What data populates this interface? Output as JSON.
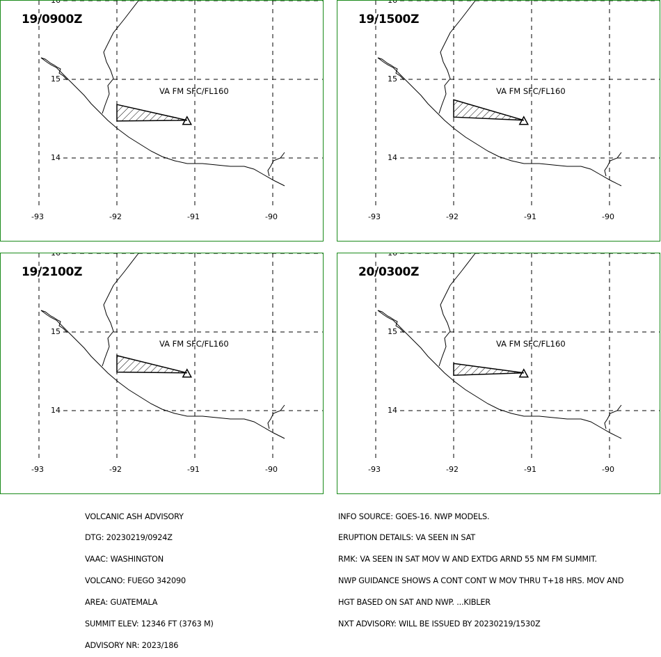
{
  "panels": [
    {
      "time": "19/0900Z",
      "label": "VA FM SFC/FL160",
      "poly": [
        [
          -92.0,
          14.68
        ],
        [
          -91.1,
          14.48
        ],
        [
          -92.0,
          14.47
        ]
      ]
    },
    {
      "time": "19/1500Z",
      "label": "VA FM SFC/FL160",
      "poly": [
        [
          -92.0,
          14.74
        ],
        [
          -91.1,
          14.48
        ],
        [
          -92.0,
          14.52
        ]
      ]
    },
    {
      "time": "19/2100Z",
      "label": "VA FM SFC/FL160",
      "poly": [
        [
          -92.0,
          14.7
        ],
        [
          -91.1,
          14.48
        ],
        [
          -92.0,
          14.49
        ]
      ]
    },
    {
      "time": "20/0300Z",
      "label": "VA FM SFC/FL160",
      "poly": [
        [
          -92.0,
          14.6
        ],
        [
          -91.1,
          14.48
        ],
        [
          -92.0,
          14.45
        ]
      ]
    }
  ],
  "axes": {
    "lon_ticks": [
      "-93",
      "-92",
      "-91",
      "-90"
    ],
    "lat_ticks": [
      "16",
      "15",
      "14"
    ]
  },
  "volcano": {
    "lon": -91.1,
    "lat": 14.48
  },
  "advisory_left": [
    "VOLCANIC ASH ADVISORY",
    "DTG: 20230219/0924Z",
    "VAAC: WASHINGTON",
    "VOLCANO: FUEGO 342090",
    "AREA: GUATEMALA",
    "SUMMIT ELEV: 12346 FT (3763 M)",
    "ADVISORY NR: 2023/186"
  ],
  "advisory_right": [
    "INFO SOURCE: GOES-16. NWP MODELS.",
    "ERUPTION DETAILS: VA SEEN IN SAT",
    "RMK: VA SEEN IN SAT MOV W AND EXTDG ARND 55 NM FM SUMMIT.",
    "NWP GUIDANCE SHOWS A CONT CONT W MOV THRU T+18 HRS. MOV AND",
    "HGT BASED ON SAT AND NWP. ...KIBLER",
    "NXT ADVISORY: WILL BE ISSUED BY 20230219/1530Z"
  ],
  "colors": {
    "border": "#1a8a1a",
    "lines": "#000000"
  }
}
